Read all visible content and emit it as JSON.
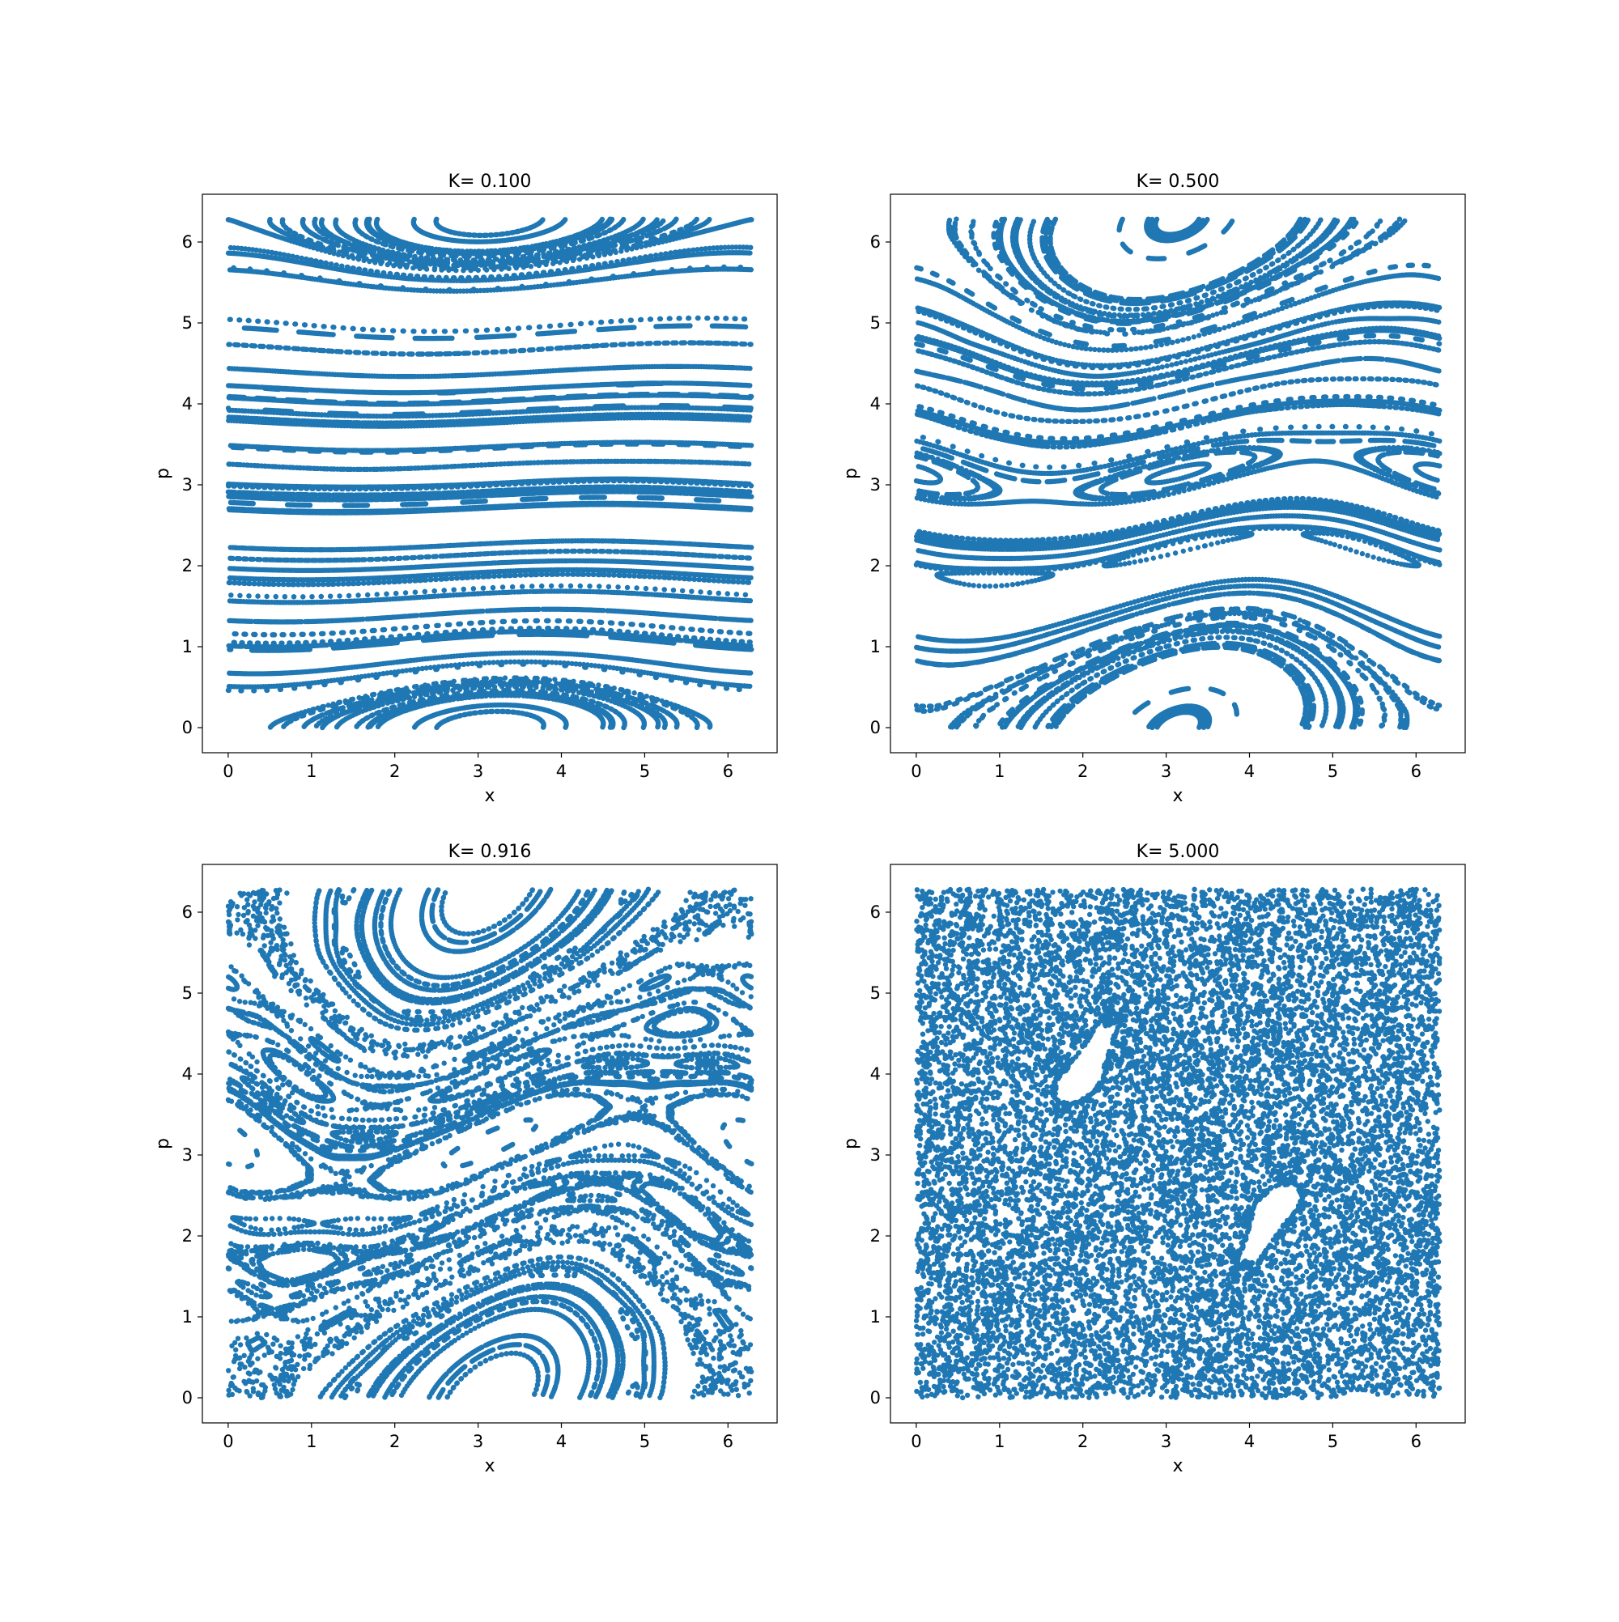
{
  "figure": {
    "marker_color": "#1f77b4"
  },
  "chart_data": [
    {
      "type": "scatter",
      "title": "K= 0.100",
      "K": 0.1,
      "xlabel": "x",
      "ylabel": "p",
      "xlim": [
        -0.31,
        6.59
      ],
      "ylim": [
        -0.31,
        6.59
      ],
      "xticks": [
        0,
        1,
        2,
        3,
        4,
        5,
        6
      ],
      "yticks": [
        0,
        1,
        2,
        3,
        4,
        5,
        6
      ],
      "xtick_labels": [
        "0",
        "1",
        "2",
        "3",
        "4",
        "5",
        "6"
      ],
      "ytick_labels": [
        "0",
        "1",
        "2",
        "3",
        "4",
        "5",
        "6"
      ],
      "grid": false,
      "legend": false,
      "points_note_k": 0.1
    },
    {
      "type": "scatter",
      "title": "K= 0.500",
      "K": 0.5,
      "xlabel": "x",
      "ylabel": "p",
      "xlim": [
        -0.31,
        6.59
      ],
      "ylim": [
        -0.31,
        6.59
      ],
      "xticks": [
        0,
        1,
        2,
        3,
        4,
        5,
        6
      ],
      "yticks": [
        0,
        1,
        2,
        3,
        4,
        5,
        6
      ],
      "xtick_labels": [
        "0",
        "1",
        "2",
        "3",
        "4",
        "5",
        "6"
      ],
      "ytick_labels": [
        "0",
        "1",
        "2",
        "3",
        "4",
        "5",
        "6"
      ],
      "grid": false,
      "legend": false
    },
    {
      "type": "scatter",
      "title": "K= 0.916",
      "K": 0.916,
      "xlabel": "x",
      "ylabel": "p",
      "xlim": [
        -0.31,
        6.59
      ],
      "ylim": [
        -0.31,
        6.59
      ],
      "xticks": [
        0,
        1,
        2,
        3,
        4,
        5,
        6
      ],
      "yticks": [
        0,
        1,
        2,
        3,
        4,
        5,
        6
      ],
      "xtick_labels": [
        "0",
        "1",
        "2",
        "3",
        "4",
        "5",
        "6"
      ],
      "ytick_labels": [
        "0",
        "1",
        "2",
        "3",
        "4",
        "5",
        "6"
      ],
      "grid": false,
      "legend": false
    },
    {
      "type": "scatter",
      "title": "K= 5.000",
      "K": 5.0,
      "xlabel": "x",
      "ylabel": "p",
      "xlim": [
        -0.31,
        6.59
      ],
      "ylim": [
        -0.31,
        6.59
      ],
      "xticks": [
        0,
        1,
        2,
        3,
        4,
        5,
        6
      ],
      "yticks": [
        0,
        1,
        2,
        3,
        4,
        5,
        6
      ],
      "xtick_labels": [
        "0",
        "1",
        "2",
        "3",
        "4",
        "5",
        "6"
      ],
      "ytick_labels": [
        "0",
        "1",
        "2",
        "3",
        "4",
        "5",
        "6"
      ],
      "grid": false,
      "legend": false
    }
  ]
}
